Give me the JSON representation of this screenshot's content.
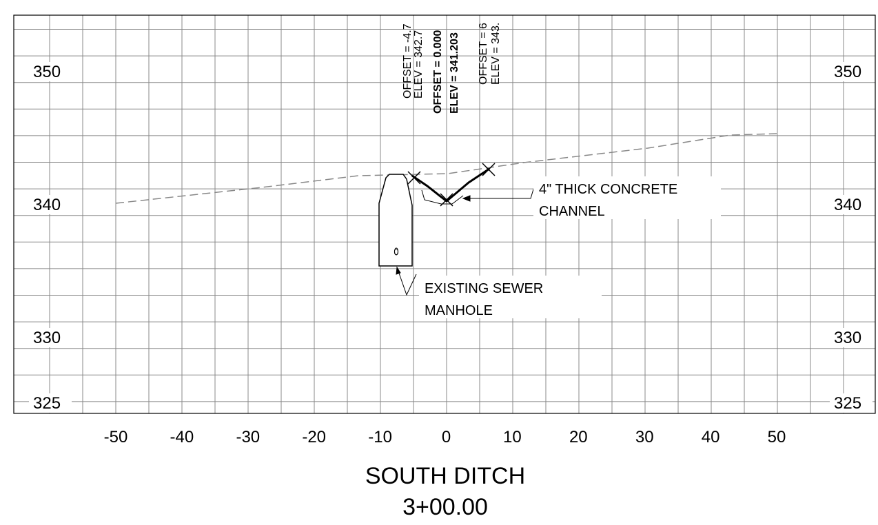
{
  "drawing": {
    "title": "SOUTH DITCH",
    "station": "3+00.00",
    "x_labels": [
      "-50",
      "-40",
      "-30",
      "-20",
      "-10",
      "0",
      "10",
      "20",
      "30",
      "40",
      "50"
    ],
    "y_labels": [
      "350",
      "340",
      "330",
      "325"
    ],
    "point_labels": [
      {
        "offset": "OFFSET = -4.7",
        "elev": "ELEV = 342.7"
      },
      {
        "offset": "OFFSET = 0.000",
        "elev": "ELEV = 341.203"
      },
      {
        "offset": "OFFSET = 6",
        "elev": "ELEV = 343."
      }
    ],
    "callouts": [
      {
        "lines": [
          "4\" THICK CONCRETE",
          "CHANNEL"
        ]
      },
      {
        "lines": [
          "EXISTING SEWER",
          "MANHOLE"
        ]
      }
    ],
    "manhole_label": "0"
  }
}
